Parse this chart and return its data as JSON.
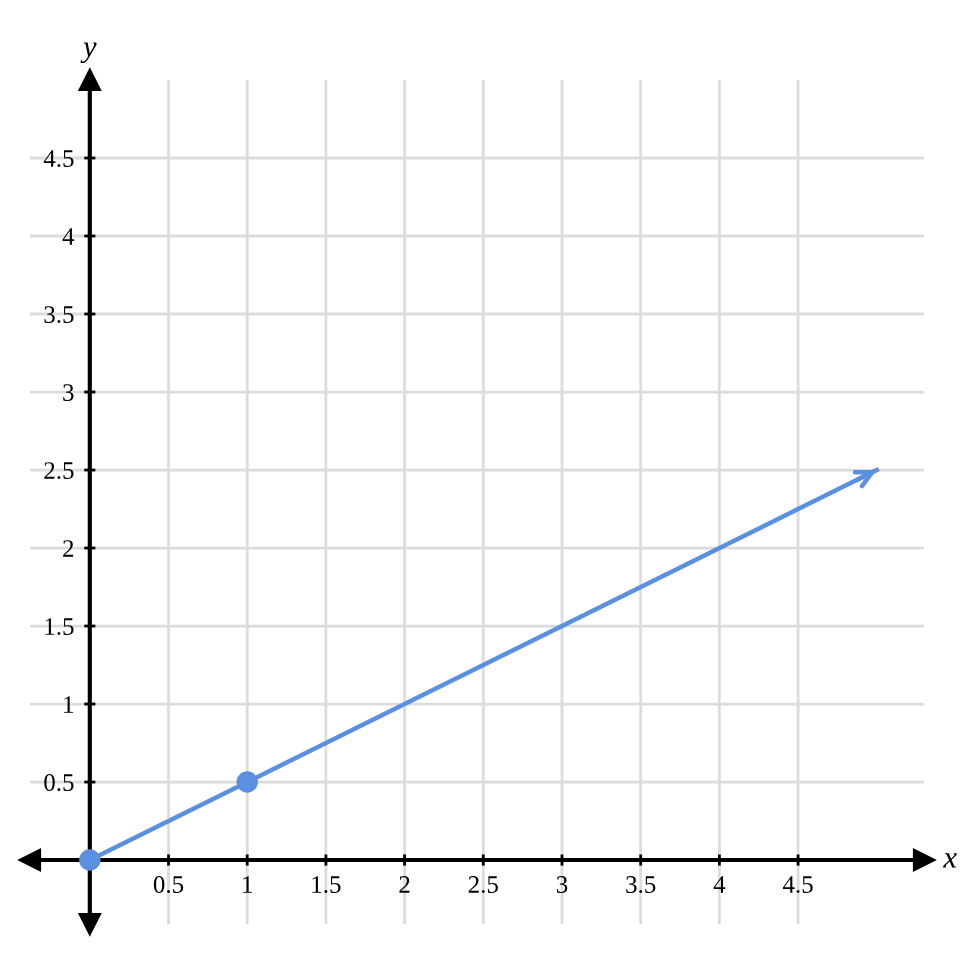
{
  "chart_data": {
    "type": "line",
    "xlabel": "x",
    "ylabel": "y",
    "series": [
      {
        "color": "#5b8fe0",
        "x": [
          0,
          5
        ],
        "values": [
          0,
          2.5
        ],
        "marker": "none"
      },
      {
        "type": "scatter",
        "color": "#5b8fe0",
        "x": [
          0,
          1
        ],
        "values": [
          0,
          0.5
        ],
        "marker": "circle"
      }
    ],
    "xlim": [
      -0.38,
      5.3
    ],
    "ylim": [
      -0.41,
      5.0
    ],
    "xticks": [
      0.5,
      1,
      1.5,
      2,
      2.5,
      3,
      3.5,
      4,
      4.5
    ],
    "yticks": [
      0.5,
      1,
      1.5,
      2,
      2.5,
      3,
      3.5,
      4,
      4.5
    ],
    "grid": true
  }
}
